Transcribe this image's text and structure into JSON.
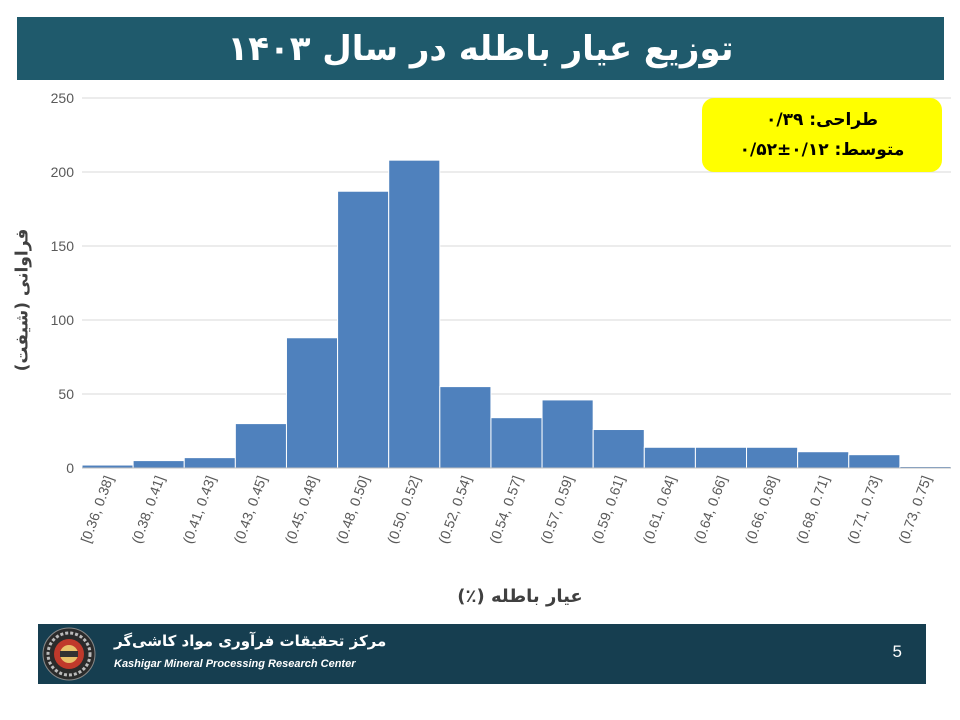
{
  "slide": {
    "title": "توزیع عیار باطله در سال ۱۴۰۳",
    "page_number": "5"
  },
  "stats": {
    "design_line": "طراحی: ۰/۳۹",
    "mean_line": "متوسط: ۰/۱۲±۰/۵۲"
  },
  "footer": {
    "org_name_fa": "مرکز تحقیقات فرآوری مواد کاشی‌گر",
    "org_name_en": "Kashigar Mineral Processing Research Center"
  },
  "colors": {
    "bar": "#4f81bd",
    "title_bg": "#1f5a6c",
    "footer_bg": "#163e50",
    "stats_bg": "#ffff00"
  },
  "chart_data": {
    "type": "bar",
    "title": "",
    "xlabel": "عیار باطله (٪)",
    "ylabel": "فراوانی (شیفت)",
    "ylim": [
      0,
      250
    ],
    "yticks": [
      0,
      50,
      100,
      150,
      200,
      250
    ],
    "grid": true,
    "categories": [
      "[0.36, 0.38]",
      "(0.38, 0.41]",
      "(0.41, 0.43]",
      "(0.43, 0.45]",
      "(0.45, 0.48]",
      "(0.48, 0.50]",
      "(0.50, 0.52]",
      "(0.52, 0.54]",
      "(0.54, 0.57]",
      "(0.57, 0.59]",
      "(0.59, 0.61]",
      "(0.61, 0.64]",
      "(0.64, 0.66]",
      "(0.66, 0.68]",
      "(0.68, 0.71]",
      "(0.71, 0.73]",
      "(0.73, 0.75]"
    ],
    "values": [
      2,
      5,
      7,
      30,
      88,
      187,
      208,
      55,
      34,
      46,
      26,
      14,
      14,
      14,
      11,
      9,
      1
    ]
  }
}
